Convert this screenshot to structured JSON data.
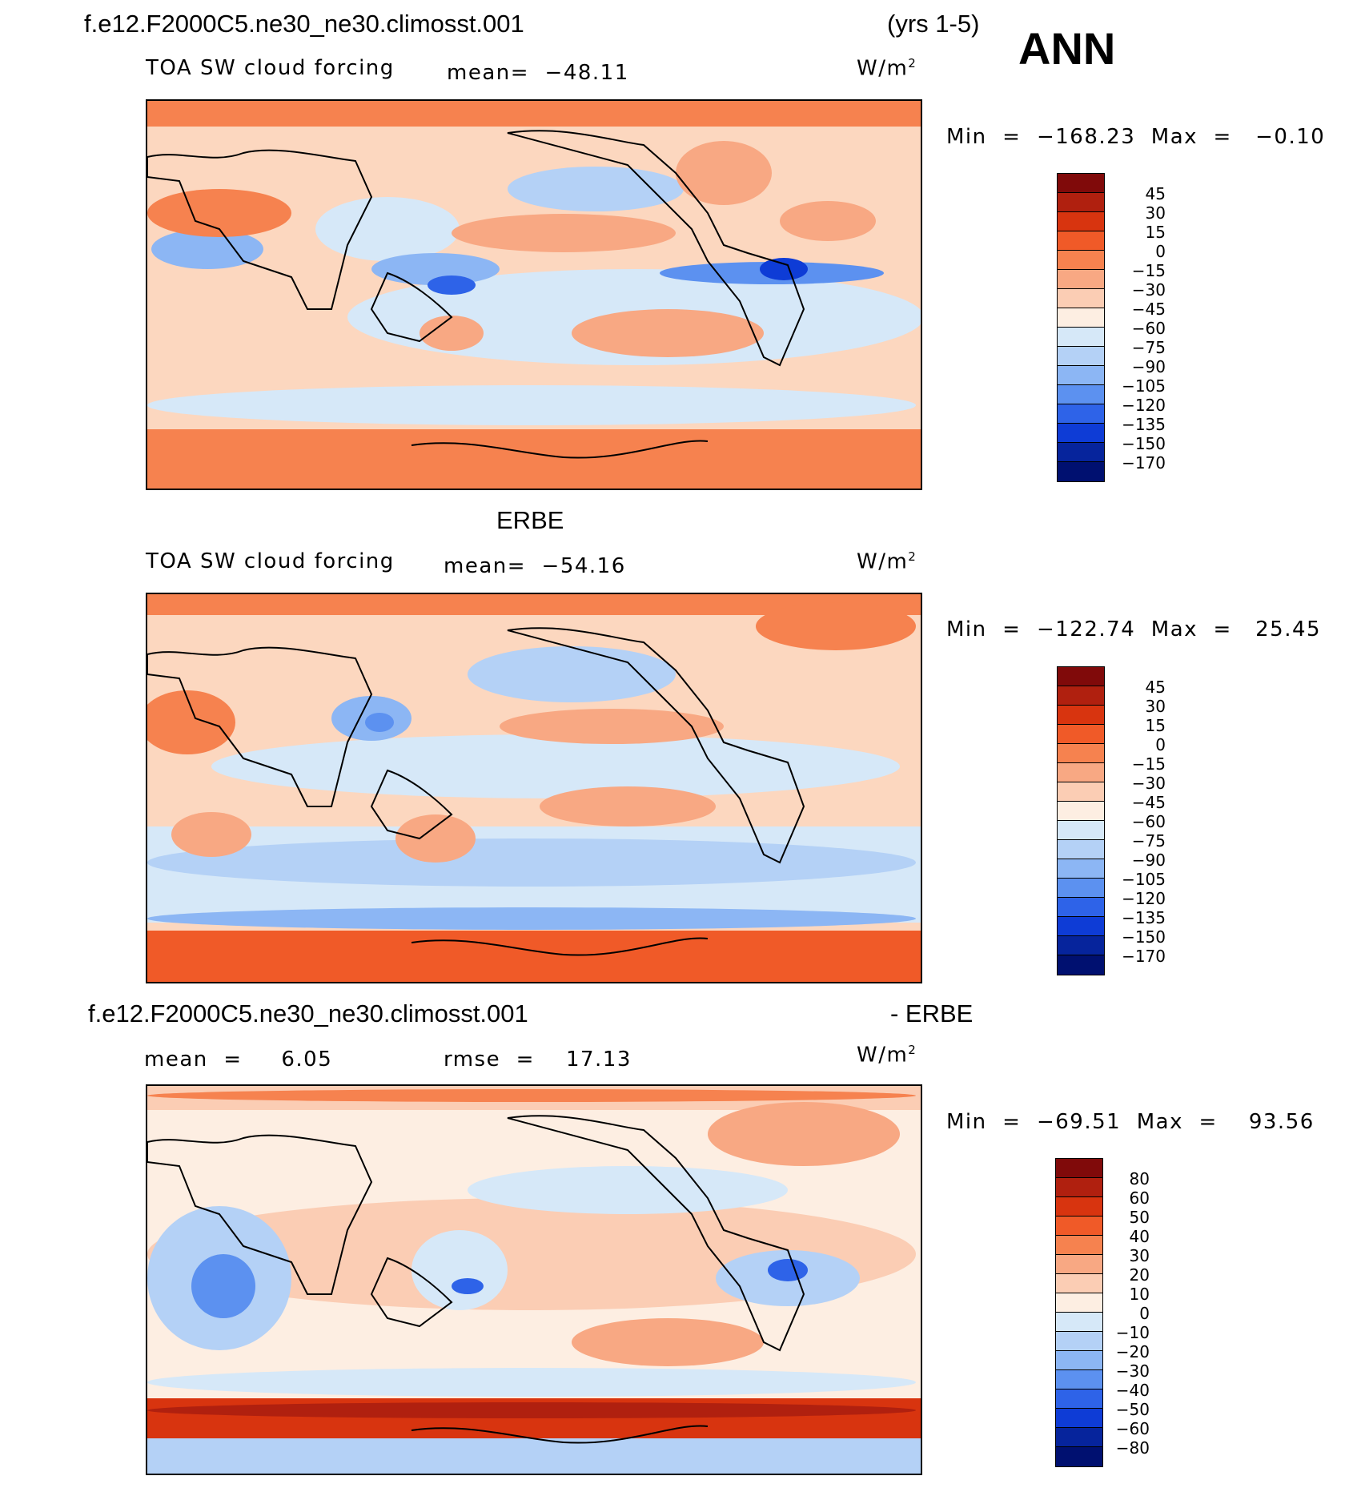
{
  "header": {
    "case_name": "f.e12.F2000C5.ne30_ne30.climosst.001",
    "years": "(yrs 1-5)",
    "season": "ANN"
  },
  "panels": [
    {
      "id": "model",
      "title": "",
      "variable": "TOA SW cloud forcing",
      "mean_text": "mean=  −48.11",
      "units": "W/m",
      "units_exp": "2",
      "minmax": "Min  =  −168.23  Max  =   −0.10",
      "legend_labels": [
        "45",
        "30",
        "15",
        "0",
        "−15",
        "−30",
        "−45",
        "−60",
        "−75",
        "−90",
        "−105",
        "−120",
        "−135",
        "−150",
        "−170"
      ]
    },
    {
      "id": "obs",
      "title": "ERBE",
      "variable": "TOA SW cloud forcing",
      "mean_text": "mean=  −54.16",
      "units": "W/m",
      "units_exp": "2",
      "minmax": "Min  =  −122.74  Max  =   25.45",
      "legend_labels": [
        "45",
        "30",
        "15",
        "0",
        "−15",
        "−30",
        "−45",
        "−60",
        "−75",
        "−90",
        "−105",
        "−120",
        "−135",
        "−150",
        "−170"
      ]
    },
    {
      "id": "diff",
      "title_left": "f.e12.F2000C5.ne30_ne30.climosst.001",
      "title_right": "- ERBE",
      "mean_text": "mean  =     6.05",
      "rmse_text": "rmse  =    17.13",
      "units": "W/m",
      "units_exp": "2",
      "minmax": "Min  =  −69.51  Max  =    93.56",
      "legend_labels": [
        "80",
        "60",
        "50",
        "40",
        "30",
        "20",
        "10",
        "0",
        "−10",
        "−20",
        "−30",
        "−40",
        "−50",
        "−60",
        "−80"
      ]
    }
  ],
  "colors": {
    "legend_scale": [
      "#800a0a",
      "#b0200f",
      "#d8340f",
      "#f05a28",
      "#f6824f",
      "#f8a883",
      "#fbcdb4",
      "#fdeee2",
      "#d6e8f8",
      "#b4d1f6",
      "#8cb6f4",
      "#5c91f0",
      "#2e63e8",
      "#0e3cd6",
      "#06249c",
      "#001070"
    ],
    "land_outline": "#000000"
  }
}
